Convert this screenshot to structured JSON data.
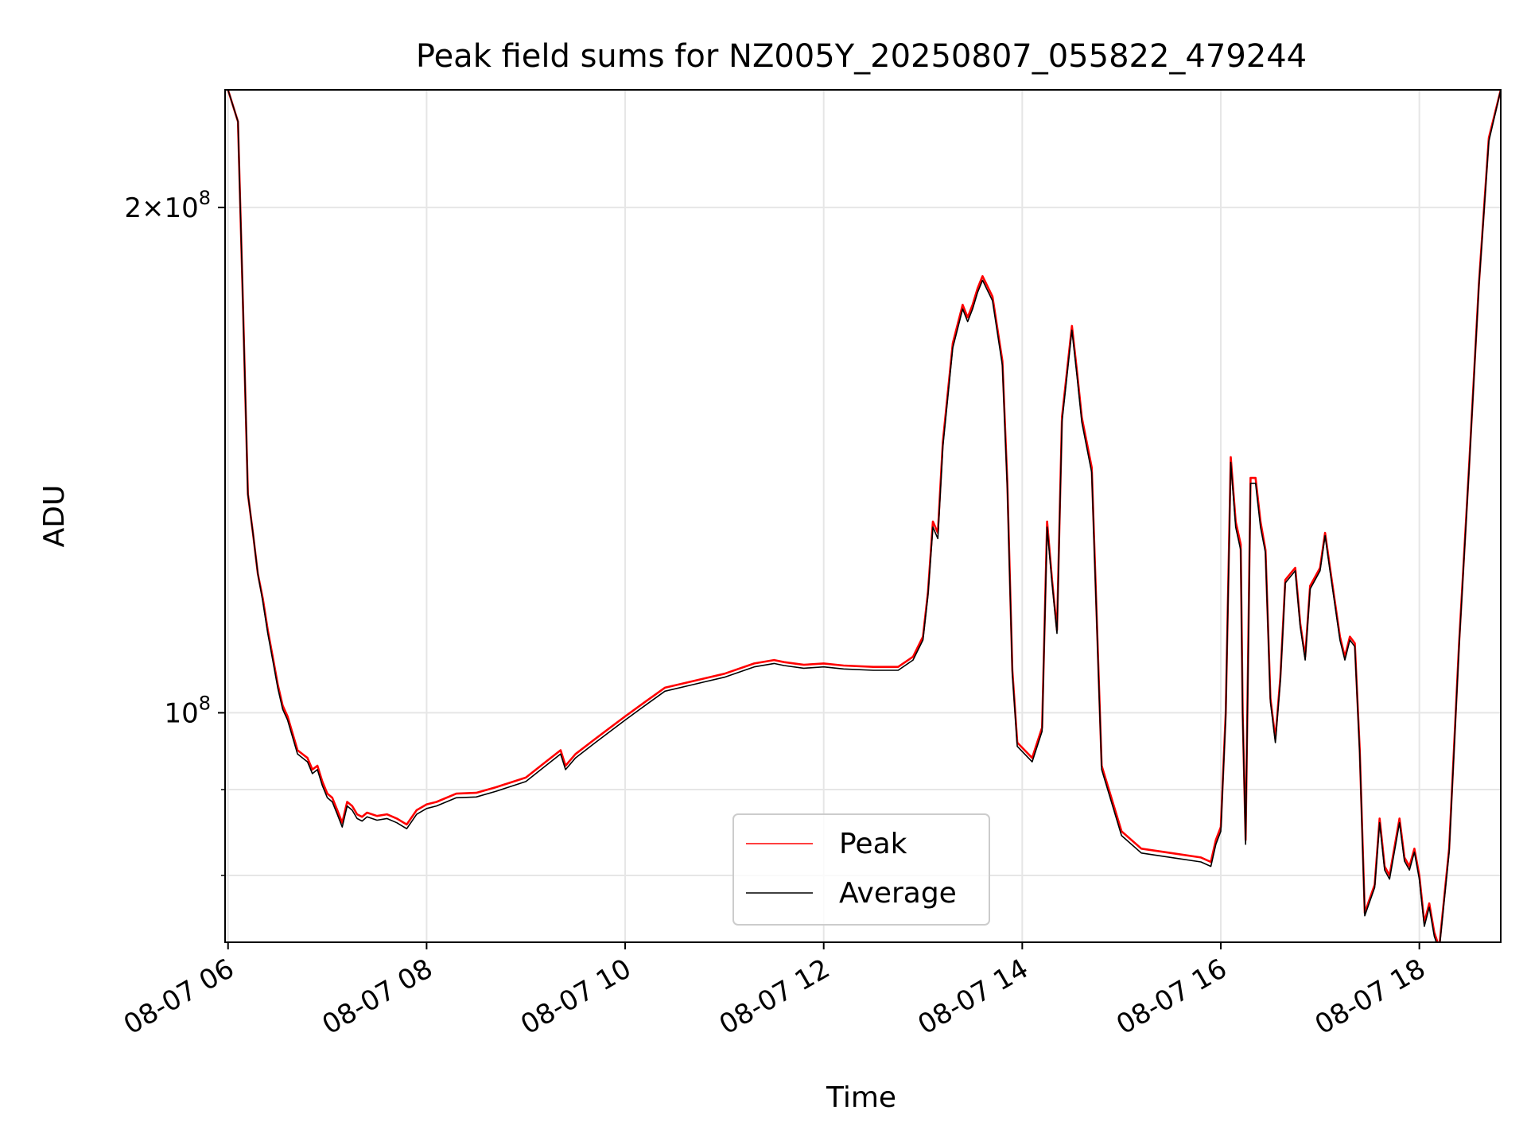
{
  "chart_data": {
    "type": "line",
    "title": "Peak field sums for NZ005Y_20250807_055822_479244",
    "xlabel": "Time",
    "ylabel": "ADU",
    "x_ticks": [
      "08-07 06",
      "08-07 08",
      "08-07 10",
      "08-07 12",
      "08-07 14",
      "08-07 16",
      "08-07 18"
    ],
    "x_tick_hours": [
      6,
      8,
      10,
      12,
      14,
      16,
      18
    ],
    "xlim_hours": [
      5.97,
      18.82
    ],
    "y_scale": "log",
    "ylim": [
      73000000,
      235000000
    ],
    "y_major_ticks": [
      {
        "value": 100000000,
        "mantissa": "",
        "exp": "8"
      },
      {
        "value": 200000000,
        "mantissa": "2×",
        "exp": "8"
      }
    ],
    "y_minor_ticks": [
      80000000,
      90000000
    ],
    "grid": true,
    "legend_position": "lower center",
    "colors": {
      "peak": "#ff0000",
      "average": "#000000",
      "grid": "#e6e6e6"
    },
    "x_hours": [
      6.0,
      6.1,
      6.15,
      6.2,
      6.25,
      6.3,
      6.35,
      6.4,
      6.45,
      6.5,
      6.55,
      6.6,
      6.7,
      6.8,
      6.85,
      6.9,
      6.95,
      7.0,
      7.05,
      7.1,
      7.15,
      7.2,
      7.25,
      7.3,
      7.35,
      7.4,
      7.5,
      7.6,
      7.7,
      7.8,
      7.9,
      8.0,
      8.1,
      8.3,
      8.5,
      8.7,
      9.0,
      9.2,
      9.35,
      9.4,
      9.5,
      9.7,
      10.0,
      10.2,
      10.4,
      10.7,
      11.0,
      11.3,
      11.5,
      11.6,
      11.8,
      12.0,
      12.2,
      12.5,
      12.75,
      12.9,
      13.0,
      13.05,
      13.1,
      13.15,
      13.2,
      13.3,
      13.4,
      13.45,
      13.5,
      13.55,
      13.6,
      13.7,
      13.8,
      13.85,
      13.9,
      13.95,
      14.1,
      14.2,
      14.25,
      14.3,
      14.35,
      14.4,
      14.5,
      14.55,
      14.6,
      14.7,
      14.8,
      15.0,
      15.2,
      15.5,
      15.8,
      15.9,
      15.95,
      16.0,
      16.05,
      16.1,
      16.15,
      16.2,
      16.22,
      16.25,
      16.3,
      16.35,
      16.4,
      16.45,
      16.5,
      16.55,
      16.6,
      16.65,
      16.7,
      16.75,
      16.8,
      16.85,
      16.9,
      17.0,
      17.05,
      17.1,
      17.2,
      17.25,
      17.3,
      17.35,
      17.4,
      17.45,
      17.55,
      17.6,
      17.65,
      17.7,
      17.8,
      17.85,
      17.9,
      17.95,
      18.0,
      18.05,
      18.1,
      18.15,
      18.2,
      18.3,
      18.4,
      18.5,
      18.6,
      18.7,
      18.82
    ],
    "series": [
      {
        "name": "Peak",
        "values": [
          235000000,
          225000000,
          175000000,
          135000000,
          128000000,
          121000000,
          117000000,
          112000000,
          108000000,
          104000000,
          101000000,
          99500000,
          95000000,
          94000000,
          92500000,
          93000000,
          91000000,
          89500000,
          89000000,
          87500000,
          86000000,
          88500000,
          88000000,
          87000000,
          86700000,
          87200000,
          86800000,
          87000000,
          86500000,
          85800000,
          87500000,
          88200000,
          88500000,
          89500000,
          89600000,
          90300000,
          91500000,
          93500000,
          95000000,
          93000000,
          94500000,
          96500000,
          99500000,
          101500000,
          103500000,
          104500000,
          105500000,
          107000000,
          107500000,
          107200000,
          106800000,
          107000000,
          106700000,
          106500000,
          106500000,
          108000000,
          111000000,
          118000000,
          130000000,
          128000000,
          145000000,
          166000000,
          175000000,
          172000000,
          175000000,
          179000000,
          182000000,
          177000000,
          162000000,
          137000000,
          106000000,
          96000000,
          94000000,
          98000000,
          130000000,
          120000000,
          112000000,
          150000000,
          170000000,
          160000000,
          150000000,
          140000000,
          93000000,
          85000000,
          83000000,
          82500000,
          82000000,
          81500000,
          84000000,
          85500000,
          100000000,
          142000000,
          130000000,
          126000000,
          100000000,
          84000000,
          138000000,
          138000000,
          130000000,
          125000000,
          102000000,
          96500000,
          105000000,
          120000000,
          121000000,
          122000000,
          113000000,
          108000000,
          119000000,
          122000000,
          128000000,
          122000000,
          111000000,
          108000000,
          111000000,
          110000000,
          95000000,
          76000000,
          79000000,
          86500000,
          81000000,
          80000000,
          86500000,
          82000000,
          81000000,
          83000000,
          80000000,
          75000000,
          77000000,
          74000000,
          72500000,
          83000000,
          110000000,
          140000000,
          180000000,
          220000000,
          235000000
        ]
      },
      {
        "name": "Average",
        "values": [
          235000000,
          225000000,
          175000000,
          135000000,
          128000000,
          121000000,
          116500000,
          111500000,
          107500000,
          103500000,
          100500000,
          99000000,
          94500000,
          93500000,
          92000000,
          92500000,
          90500000,
          89000000,
          88500000,
          87000000,
          85500000,
          88000000,
          87500000,
          86500000,
          86200000,
          86700000,
          86300000,
          86500000,
          86000000,
          85300000,
          87000000,
          87700000,
          88000000,
          89000000,
          89100000,
          89800000,
          91000000,
          93000000,
          94500000,
          92500000,
          94000000,
          96000000,
          99000000,
          101000000,
          103000000,
          104000000,
          105000000,
          106500000,
          107000000,
          106700000,
          106300000,
          106500000,
          106200000,
          106000000,
          106000000,
          107500000,
          110500000,
          117500000,
          129000000,
          127000000,
          144000000,
          165000000,
          174000000,
          171000000,
          174000000,
          178000000,
          181000000,
          176000000,
          161000000,
          136000000,
          105500000,
          95500000,
          93500000,
          97500000,
          129000000,
          119500000,
          111500000,
          149000000,
          169000000,
          159000000,
          149000000,
          139000000,
          92500000,
          84500000,
          82500000,
          82000000,
          81500000,
          81000000,
          83500000,
          85000000,
          99500000,
          141000000,
          129000000,
          125000000,
          99500000,
          83500000,
          137000000,
          137000000,
          129000000,
          124500000,
          101500000,
          96000000,
          104500000,
          119500000,
          120500000,
          121500000,
          112500000,
          107500000,
          118500000,
          121500000,
          127500000,
          121500000,
          110500000,
          107500000,
          110500000,
          109500000,
          94500000,
          75700000,
          78700000,
          86000000,
          80600000,
          79600000,
          86000000,
          81600000,
          80600000,
          82600000,
          79600000,
          74600000,
          76600000,
          73600000,
          72200000,
          82600000,
          109500000,
          139500000,
          179500000,
          219000000,
          235000000
        ]
      }
    ]
  }
}
